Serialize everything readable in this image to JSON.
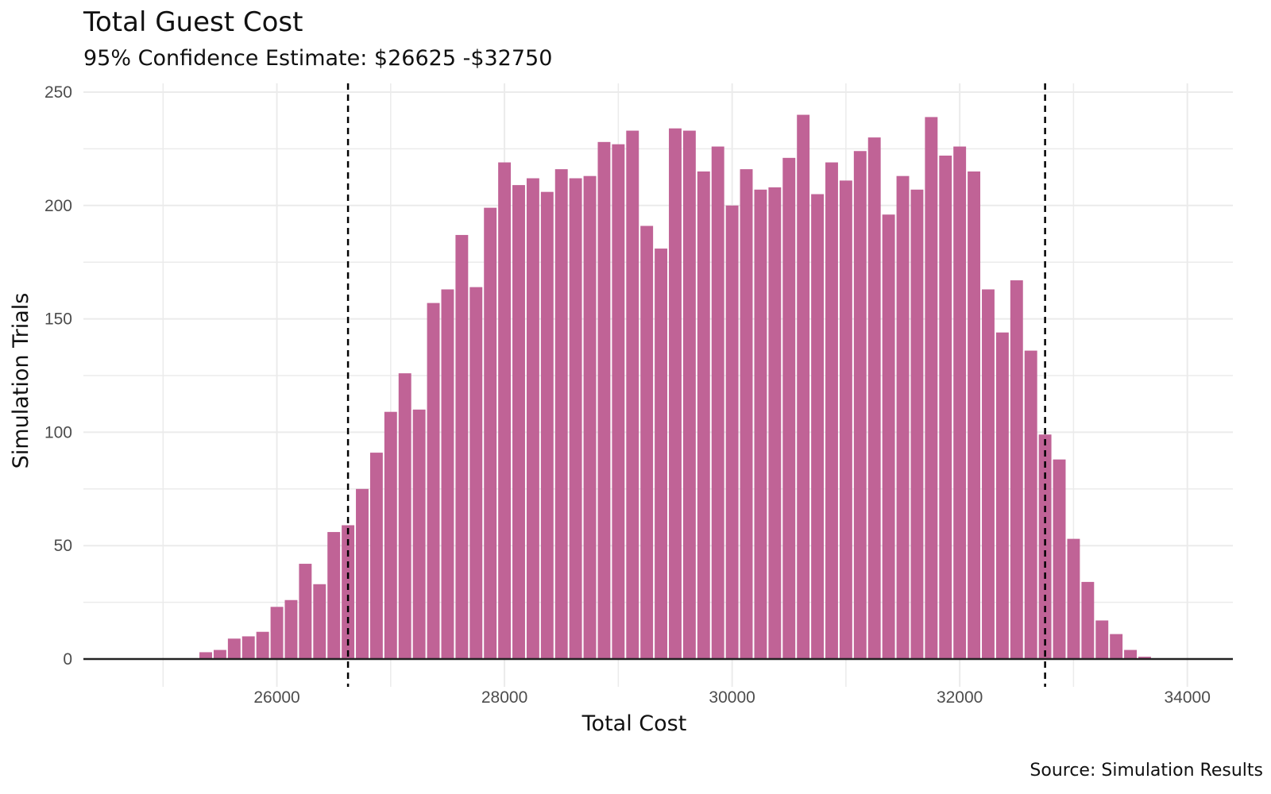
{
  "chart_data": {
    "type": "bar",
    "title": "Total Guest Cost",
    "subtitle": "95% Confidence Estimate: $26625 -$32750",
    "xlabel": "Total Cost",
    "ylabel": "Simulation Trials",
    "caption": "Source: Simulation Results",
    "bin_width": 125,
    "xlim": [
      24300,
      34400
    ],
    "ylim": [
      0,
      250
    ],
    "x_ticks": [
      26000,
      28000,
      30000,
      32000,
      34000
    ],
    "y_ticks": [
      0,
      50,
      100,
      150,
      200,
      250
    ],
    "grid": true,
    "bar_color": "#c06396",
    "vlines": [
      26625,
      32750
    ],
    "vline_style": "dashed",
    "x": [
      25375,
      25500,
      25625,
      25750,
      25875,
      26000,
      26125,
      26250,
      26375,
      26500,
      26625,
      26750,
      26875,
      27000,
      27125,
      27250,
      27375,
      27500,
      27625,
      27750,
      27875,
      28000,
      28125,
      28250,
      28375,
      28500,
      28625,
      28750,
      28875,
      29000,
      29125,
      29250,
      29375,
      29500,
      29625,
      29750,
      29875,
      30000,
      30125,
      30250,
      30375,
      30500,
      30625,
      30750,
      30875,
      31000,
      31125,
      31250,
      31375,
      31500,
      31625,
      31750,
      31875,
      32000,
      32125,
      32250,
      32375,
      32500,
      32625,
      32750,
      32875,
      33000,
      33125,
      33250,
      33375,
      33500,
      33625
    ],
    "values": [
      3,
      4,
      9,
      10,
      12,
      23,
      26,
      42,
      33,
      56,
      59,
      75,
      91,
      109,
      126,
      110,
      157,
      163,
      187,
      164,
      199,
      219,
      209,
      212,
      206,
      216,
      212,
      213,
      228,
      227,
      233,
      191,
      181,
      234,
      233,
      215,
      226,
      200,
      216,
      207,
      208,
      221,
      240,
      205,
      219,
      211,
      224,
      230,
      196,
      213,
      207,
      239,
      222,
      226,
      215,
      163,
      144,
      167,
      136,
      99,
      88,
      53,
      34,
      17,
      11,
      4,
      1
    ]
  }
}
